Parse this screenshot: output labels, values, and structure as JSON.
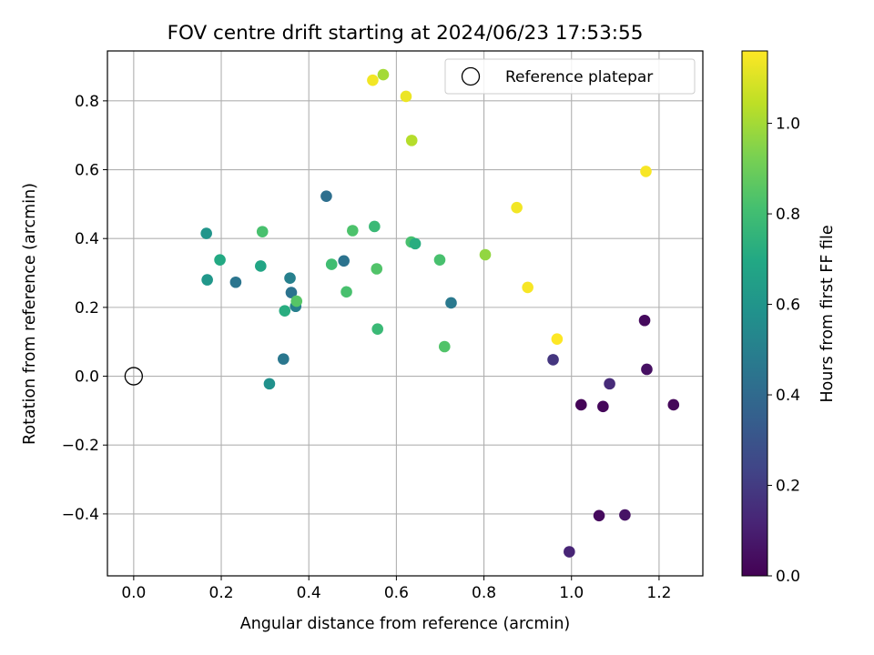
{
  "chart_data": {
    "type": "scatter",
    "title": "FOV centre drift starting at 2024/06/23 17:53:55",
    "xlabel": "Angular distance from reference (arcmin)",
    "ylabel": "Rotation from reference (arcmin)",
    "xlim": [
      -0.06,
      1.3
    ],
    "ylim": [
      -0.58,
      0.945
    ],
    "xticks": [
      0.0,
      0.2,
      0.4,
      0.6,
      0.8,
      1.0,
      1.2
    ],
    "xtick_labels": [
      "0.0",
      "0.2",
      "0.4",
      "0.6",
      "0.8",
      "1.0",
      "1.2"
    ],
    "yticks": [
      -0.4,
      -0.2,
      0.0,
      0.2,
      0.4,
      0.6,
      0.8
    ],
    "ytick_labels": [
      "−0.4",
      "−0.2",
      "0.0",
      "0.2",
      "0.4",
      "0.6",
      "0.8"
    ],
    "grid": true,
    "legend": {
      "position": "top-right",
      "entries": [
        "Reference platepar"
      ]
    },
    "reference_point": {
      "x": 0.0,
      "y": 0.0,
      "label": "Reference platepar"
    },
    "colorbar": {
      "label": "Hours from first FF file",
      "colormap": "viridis",
      "range": [
        0.0,
        1.16
      ],
      "ticks": [
        0.0,
        0.2,
        0.4,
        0.6,
        0.8,
        1.0
      ],
      "tick_labels": [
        "0.0",
        "0.2",
        "0.4",
        "0.6",
        "0.8",
        "1.0"
      ]
    },
    "points": [
      {
        "x": 0.995,
        "y": -0.51,
        "hours": 0.12
      },
      {
        "x": 1.063,
        "y": -0.405,
        "hours": 0.03
      },
      {
        "x": 1.122,
        "y": -0.403,
        "hours": 0.06
      },
      {
        "x": 1.022,
        "y": -0.083,
        "hours": 0.01
      },
      {
        "x": 1.072,
        "y": -0.088,
        "hours": 0.02
      },
      {
        "x": 1.087,
        "y": -0.022,
        "hours": 0.14
      },
      {
        "x": 1.233,
        "y": -0.083,
        "hours": 0.02
      },
      {
        "x": 1.172,
        "y": 0.02,
        "hours": 0.05
      },
      {
        "x": 1.167,
        "y": 0.162,
        "hours": 0.03
      },
      {
        "x": 0.958,
        "y": 0.048,
        "hours": 0.18
      },
      {
        "x": 0.342,
        "y": 0.05,
        "hours": 0.46
      },
      {
        "x": 0.31,
        "y": -0.022,
        "hours": 0.58
      },
      {
        "x": 0.166,
        "y": 0.415,
        "hours": 0.6
      },
      {
        "x": 0.168,
        "y": 0.28,
        "hours": 0.61
      },
      {
        "x": 0.197,
        "y": 0.338,
        "hours": 0.7
      },
      {
        "x": 0.233,
        "y": 0.273,
        "hours": 0.45
      },
      {
        "x": 0.29,
        "y": 0.32,
        "hours": 0.68
      },
      {
        "x": 0.294,
        "y": 0.42,
        "hours": 0.82
      },
      {
        "x": 0.357,
        "y": 0.285,
        "hours": 0.5
      },
      {
        "x": 0.36,
        "y": 0.243,
        "hours": 0.44
      },
      {
        "x": 0.345,
        "y": 0.19,
        "hours": 0.72
      },
      {
        "x": 0.37,
        "y": 0.203,
        "hours": 0.5
      },
      {
        "x": 0.372,
        "y": 0.218,
        "hours": 0.85
      },
      {
        "x": 0.44,
        "y": 0.523,
        "hours": 0.42
      },
      {
        "x": 0.452,
        "y": 0.325,
        "hours": 0.8
      },
      {
        "x": 0.48,
        "y": 0.335,
        "hours": 0.44
      },
      {
        "x": 0.486,
        "y": 0.245,
        "hours": 0.82
      },
      {
        "x": 0.5,
        "y": 0.423,
        "hours": 0.83
      },
      {
        "x": 0.55,
        "y": 0.435,
        "hours": 0.78
      },
      {
        "x": 0.555,
        "y": 0.312,
        "hours": 0.84
      },
      {
        "x": 0.557,
        "y": 0.137,
        "hours": 0.78
      },
      {
        "x": 0.634,
        "y": 0.39,
        "hours": 0.82
      },
      {
        "x": 0.643,
        "y": 0.385,
        "hours": 0.72
      },
      {
        "x": 0.699,
        "y": 0.338,
        "hours": 0.82
      },
      {
        "x": 0.71,
        "y": 0.086,
        "hours": 0.84
      },
      {
        "x": 0.725,
        "y": 0.213,
        "hours": 0.47
      },
      {
        "x": 0.803,
        "y": 0.353,
        "hours": 0.97
      },
      {
        "x": 0.875,
        "y": 0.49,
        "hours": 1.14
      },
      {
        "x": 0.9,
        "y": 0.258,
        "hours": 1.15
      },
      {
        "x": 0.967,
        "y": 0.108,
        "hours": 1.16
      },
      {
        "x": 1.17,
        "y": 0.595,
        "hours": 1.15
      },
      {
        "x": 0.546,
        "y": 0.86,
        "hours": 1.14
      },
      {
        "x": 0.57,
        "y": 0.876,
        "hours": 1.0
      },
      {
        "x": 0.622,
        "y": 0.813,
        "hours": 1.13
      },
      {
        "x": 0.635,
        "y": 0.685,
        "hours": 1.03
      }
    ]
  }
}
